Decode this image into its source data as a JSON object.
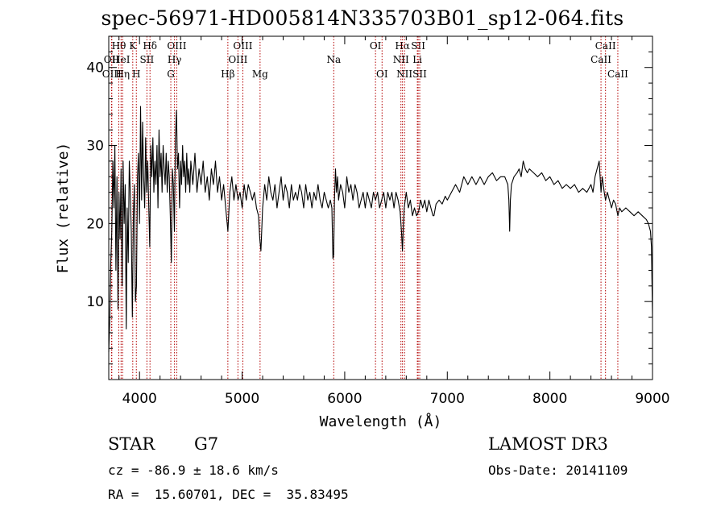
{
  "title": "spec-56971-HD005814N335703B01_sp12-064.fits",
  "info": {
    "object_class": "STAR",
    "subclass": "G7",
    "survey": "LAMOST DR3",
    "cz": "cz = -86.9 ± 18.6 km/s",
    "obs_date": "Obs-Date: 20141109",
    "coords": "RA =  15.60701, DEC =  35.83495"
  },
  "chart_data": {
    "type": "line",
    "title": "spec-56971-HD005814N335703B01_sp12-064.fits",
    "xlabel": "Wavelength (Å)",
    "ylabel": "Flux (relative)",
    "xlim": [
      3700,
      9000
    ],
    "ylim": [
      0,
      44
    ],
    "xticks": [
      4000,
      5000,
      6000,
      7000,
      8000,
      9000
    ],
    "yticks": [
      10,
      20,
      30,
      40
    ],
    "line_color": "#000000",
    "marker_color": "#b30000",
    "series": [
      {
        "name": "flux",
        "points": [
          [
            3700,
            3.5
          ],
          [
            3710,
            8
          ],
          [
            3720,
            15
          ],
          [
            3730,
            19
          ],
          [
            3740,
            28
          ],
          [
            3750,
            22
          ],
          [
            3760,
            30
          ],
          [
            3770,
            14
          ],
          [
            3780,
            26
          ],
          [
            3790,
            9
          ],
          [
            3800,
            24
          ],
          [
            3810,
            18
          ],
          [
            3820,
            27
          ],
          [
            3830,
            12
          ],
          [
            3840,
            28
          ],
          [
            3850,
            20
          ],
          [
            3860,
            25
          ],
          [
            3870,
            6.5
          ],
          [
            3880,
            22
          ],
          [
            3890,
            15
          ],
          [
            3900,
            28
          ],
          [
            3910,
            24
          ],
          [
            3920,
            19
          ],
          [
            3930,
            8
          ],
          [
            3940,
            21
          ],
          [
            3950,
            25
          ],
          [
            3960,
            10
          ],
          [
            3970,
            12
          ],
          [
            3980,
            26
          ],
          [
            3990,
            29
          ],
          [
            4000,
            20
          ],
          [
            4010,
            35
          ],
          [
            4020,
            23
          ],
          [
            4030,
            33
          ],
          [
            4040,
            26
          ],
          [
            4050,
            22
          ],
          [
            4060,
            31
          ],
          [
            4070,
            24
          ],
          [
            4080,
            28
          ],
          [
            4090,
            22
          ],
          [
            4100,
            17
          ],
          [
            4110,
            30
          ],
          [
            4120,
            26
          ],
          [
            4130,
            31
          ],
          [
            4140,
            24
          ],
          [
            4150,
            28
          ],
          [
            4160,
            25
          ],
          [
            4170,
            30
          ],
          [
            4180,
            22
          ],
          [
            4190,
            32
          ],
          [
            4200,
            26
          ],
          [
            4210,
            29
          ],
          [
            4220,
            24
          ],
          [
            4230,
            30
          ],
          [
            4240,
            27
          ],
          [
            4250,
            25
          ],
          [
            4260,
            29
          ],
          [
            4270,
            24
          ],
          [
            4280,
            28
          ],
          [
            4290,
            26
          ],
          [
            4300,
            21
          ],
          [
            4310,
            15
          ],
          [
            4320,
            27
          ],
          [
            4330,
            25
          ],
          [
            4340,
            19
          ],
          [
            4350,
            31
          ],
          [
            4360,
            34.5
          ],
          [
            4370,
            27
          ],
          [
            4380,
            29
          ],
          [
            4390,
            22
          ],
          [
            4400,
            28
          ],
          [
            4410,
            25
          ],
          [
            4420,
            30
          ],
          [
            4430,
            26
          ],
          [
            4440,
            28
          ],
          [
            4450,
            24
          ],
          [
            4460,
            29
          ],
          [
            4470,
            25
          ],
          [
            4480,
            27
          ],
          [
            4490,
            24
          ],
          [
            4500,
            28
          ],
          [
            4520,
            25
          ],
          [
            4540,
            29
          ],
          [
            4560,
            24
          ],
          [
            4580,
            27
          ],
          [
            4600,
            25
          ],
          [
            4620,
            28
          ],
          [
            4640,
            24
          ],
          [
            4660,
            26
          ],
          [
            4680,
            23
          ],
          [
            4700,
            27
          ],
          [
            4720,
            25
          ],
          [
            4740,
            28
          ],
          [
            4760,
            24
          ],
          [
            4780,
            26
          ],
          [
            4800,
            23
          ],
          [
            4820,
            25
          ],
          [
            4840,
            22
          ],
          [
            4861,
            19
          ],
          [
            4880,
            24
          ],
          [
            4900,
            26
          ],
          [
            4920,
            23
          ],
          [
            4940,
            25
          ],
          [
            4960,
            23
          ],
          [
            4980,
            24
          ],
          [
            5000,
            22
          ],
          [
            5020,
            25
          ],
          [
            5040,
            23
          ],
          [
            5060,
            25
          ],
          [
            5080,
            24
          ],
          [
            5100,
            23
          ],
          [
            5120,
            24
          ],
          [
            5140,
            22
          ],
          [
            5160,
            21
          ],
          [
            5172,
            18
          ],
          [
            5183,
            16.5
          ],
          [
            5200,
            22
          ],
          [
            5220,
            25
          ],
          [
            5240,
            23
          ],
          [
            5260,
            26
          ],
          [
            5280,
            24
          ],
          [
            5300,
            23
          ],
          [
            5320,
            25
          ],
          [
            5340,
            22
          ],
          [
            5360,
            24
          ],
          [
            5380,
            26
          ],
          [
            5400,
            23
          ],
          [
            5420,
            25
          ],
          [
            5440,
            24
          ],
          [
            5460,
            22
          ],
          [
            5480,
            25
          ],
          [
            5500,
            23
          ],
          [
            5520,
            24
          ],
          [
            5540,
            23
          ],
          [
            5560,
            25
          ],
          [
            5580,
            24
          ],
          [
            5600,
            22
          ],
          [
            5620,
            25
          ],
          [
            5640,
            23
          ],
          [
            5660,
            24
          ],
          [
            5680,
            22
          ],
          [
            5700,
            24
          ],
          [
            5720,
            23
          ],
          [
            5740,
            25
          ],
          [
            5760,
            23
          ],
          [
            5780,
            22
          ],
          [
            5800,
            24
          ],
          [
            5820,
            23
          ],
          [
            5840,
            22
          ],
          [
            5860,
            23
          ],
          [
            5875,
            22
          ],
          [
            5885,
            15.5
          ],
          [
            5892,
            16
          ],
          [
            5900,
            23
          ],
          [
            5910,
            27
          ],
          [
            5920,
            24
          ],
          [
            5930,
            26
          ],
          [
            5940,
            23
          ],
          [
            5960,
            25
          ],
          [
            5980,
            24
          ],
          [
            6000,
            22
          ],
          [
            6020,
            26
          ],
          [
            6040,
            24
          ],
          [
            6060,
            25
          ],
          [
            6080,
            23
          ],
          [
            6100,
            25
          ],
          [
            6120,
            24
          ],
          [
            6140,
            22
          ],
          [
            6160,
            23
          ],
          [
            6180,
            24
          ],
          [
            6200,
            22
          ],
          [
            6220,
            24
          ],
          [
            6240,
            23
          ],
          [
            6260,
            22
          ],
          [
            6280,
            24
          ],
          [
            6300,
            23
          ],
          [
            6320,
            24
          ],
          [
            6340,
            22
          ],
          [
            6360,
            23
          ],
          [
            6380,
            24
          ],
          [
            6400,
            22
          ],
          [
            6420,
            24
          ],
          [
            6440,
            23
          ],
          [
            6460,
            24
          ],
          [
            6480,
            22
          ],
          [
            6500,
            24
          ],
          [
            6520,
            23
          ],
          [
            6540,
            21.5
          ],
          [
            6553,
            19
          ],
          [
            6563,
            16.5
          ],
          [
            6572,
            20
          ],
          [
            6580,
            22
          ],
          [
            6600,
            24
          ],
          [
            6620,
            22
          ],
          [
            6640,
            23
          ],
          [
            6660,
            21
          ],
          [
            6680,
            22
          ],
          [
            6700,
            21
          ],
          [
            6720,
            21.5
          ],
          [
            6740,
            23
          ],
          [
            6760,
            22
          ],
          [
            6780,
            23
          ],
          [
            6800,
            21.5
          ],
          [
            6820,
            23
          ],
          [
            6840,
            22
          ],
          [
            6860,
            21
          ],
          [
            6870,
            21
          ],
          [
            6890,
            22.5
          ],
          [
            6920,
            23
          ],
          [
            6950,
            22.5
          ],
          [
            6980,
            23.5
          ],
          [
            7000,
            23
          ],
          [
            7040,
            24
          ],
          [
            7080,
            25
          ],
          [
            7120,
            24
          ],
          [
            7160,
            26
          ],
          [
            7200,
            25
          ],
          [
            7240,
            26
          ],
          [
            7280,
            25
          ],
          [
            7320,
            26
          ],
          [
            7360,
            25
          ],
          [
            7400,
            26
          ],
          [
            7440,
            26.5
          ],
          [
            7480,
            25.5
          ],
          [
            7520,
            26
          ],
          [
            7560,
            26
          ],
          [
            7590,
            25
          ],
          [
            7600,
            23
          ],
          [
            7608,
            19
          ],
          [
            7615,
            23
          ],
          [
            7625,
            25
          ],
          [
            7650,
            26
          ],
          [
            7680,
            26.5
          ],
          [
            7700,
            27
          ],
          [
            7720,
            26
          ],
          [
            7740,
            28
          ],
          [
            7760,
            27
          ],
          [
            7780,
            26.5
          ],
          [
            7800,
            27
          ],
          [
            7840,
            26.5
          ],
          [
            7880,
            26
          ],
          [
            7920,
            26.5
          ],
          [
            7960,
            25.5
          ],
          [
            8000,
            26
          ],
          [
            8040,
            25
          ],
          [
            8080,
            25.5
          ],
          [
            8120,
            24.5
          ],
          [
            8160,
            25
          ],
          [
            8200,
            24.5
          ],
          [
            8240,
            25
          ],
          [
            8280,
            24
          ],
          [
            8320,
            24.5
          ],
          [
            8360,
            24
          ],
          [
            8400,
            25
          ],
          [
            8420,
            24
          ],
          [
            8440,
            26
          ],
          [
            8460,
            27
          ],
          [
            8480,
            28
          ],
          [
            8498,
            24
          ],
          [
            8510,
            26
          ],
          [
            8530,
            24
          ],
          [
            8542,
            23
          ],
          [
            8560,
            24
          ],
          [
            8580,
            23
          ],
          [
            8600,
            22
          ],
          [
            8620,
            23
          ],
          [
            8640,
            22.5
          ],
          [
            8662,
            21
          ],
          [
            8680,
            22
          ],
          [
            8700,
            21.5
          ],
          [
            8740,
            22
          ],
          [
            8780,
            21.5
          ],
          [
            8820,
            21
          ],
          [
            8860,
            21.5
          ],
          [
            8900,
            21
          ],
          [
            8940,
            20.5
          ],
          [
            8960,
            20
          ],
          [
            8980,
            19
          ],
          [
            8990,
            17
          ],
          [
            9000,
            8
          ]
        ]
      }
    ],
    "line_markers": [
      {
        "label": "Hθ",
        "wavelength": 3798,
        "row": 0
      },
      {
        "label": "OII",
        "wavelength": 3727,
        "row": 1
      },
      {
        "label": "OIII",
        "wavelength": 3730,
        "row": 2
      },
      {
        "label": "HeI",
        "wavelength": 3820,
        "row": 1
      },
      {
        "label": "Hη",
        "wavelength": 3835,
        "row": 2
      },
      {
        "label": "K",
        "wavelength": 3934,
        "row": 0
      },
      {
        "label": "SII",
        "wavelength": 4072,
        "row": 1
      },
      {
        "label": "H",
        "wavelength": 3969,
        "row": 2
      },
      {
        "label": "Hδ",
        "wavelength": 4102,
        "row": 0
      },
      {
        "label": "OIII",
        "wavelength": 4363,
        "row": 0
      },
      {
        "label": "Hγ",
        "wavelength": 4341,
        "row": 1
      },
      {
        "label": "G",
        "wavelength": 4305,
        "row": 2
      },
      {
        "label": "Hβ",
        "wavelength": 4861,
        "row": 2
      },
      {
        "label": "OIII",
        "wavelength": 5007,
        "row": 0
      },
      {
        "label": "OIII",
        "wavelength": 4959,
        "row": 1
      },
      {
        "label": "Mg",
        "wavelength": 5175,
        "row": 2
      },
      {
        "label": "Na",
        "wavelength": 5893,
        "row": 1
      },
      {
        "label": "OI",
        "wavelength": 6300,
        "row": 0
      },
      {
        "label": "OI",
        "wavelength": 6364,
        "row": 2
      },
      {
        "label": "Hα",
        "wavelength": 6563,
        "row": 0
      },
      {
        "label": "SII",
        "wavelength": 6716,
        "row": 0
      },
      {
        "label": "NII",
        "wavelength": 6548,
        "row": 1
      },
      {
        "label": "Li",
        "wavelength": 6708,
        "row": 1
      },
      {
        "label": "NII",
        "wavelength": 6583,
        "row": 2
      },
      {
        "label": "SII",
        "wavelength": 6731,
        "row": 2
      },
      {
        "label": "CaII",
        "wavelength": 8542,
        "row": 0
      },
      {
        "label": "CaII",
        "wavelength": 8498,
        "row": 1
      },
      {
        "label": "CaII",
        "wavelength": 8662,
        "row": 2
      }
    ]
  }
}
